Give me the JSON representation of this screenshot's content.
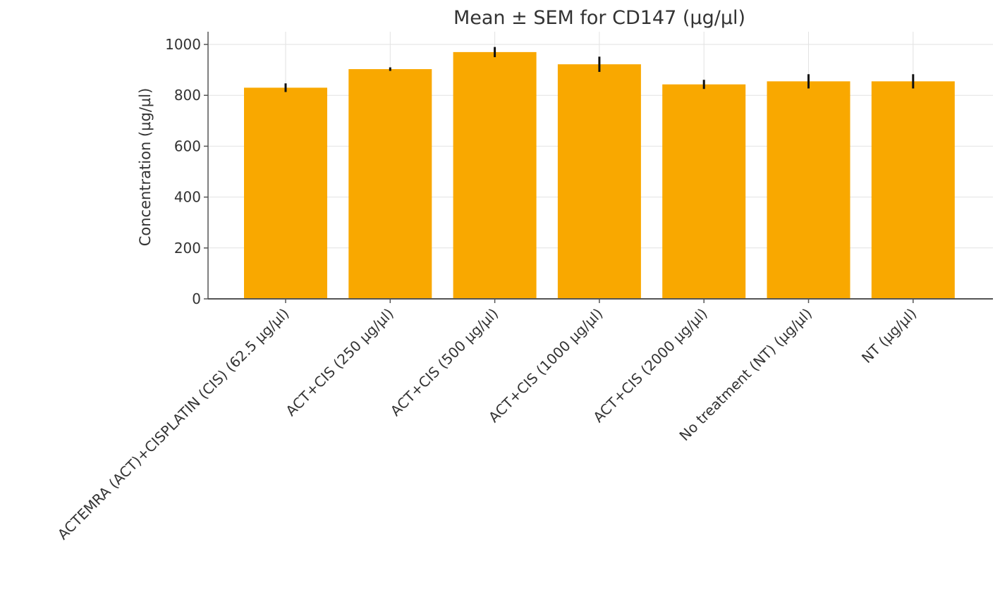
{
  "chart_data": {
    "type": "bar",
    "title": "Mean ± SEM for CD147 (µg/µl)",
    "xlabel": "",
    "ylabel": "Concentration (µg/µl)",
    "categories": [
      "ACTEMRA (ACT)+CISPLATIN (CIS) (62.5 µg/µl)",
      "ACT+CIS (250 µg/µl)",
      "ACT+CIS (500 µg/µl)",
      "ACT+CIS (1000 µg/µl)",
      "ACT+CIS (2000 µg/µl)",
      "No treatment (NT) (µg/µl)",
      "NT  (µg/µl)"
    ],
    "values": [
      830,
      903,
      970,
      922,
      843,
      855,
      855
    ],
    "errors": [
      17,
      7,
      20,
      30,
      18,
      28,
      28
    ],
    "ylim": [
      0,
      1050
    ],
    "yticks": [
      0,
      200,
      400,
      600,
      800,
      1000
    ],
    "grid": true,
    "colors": {
      "bar": "#f9a800",
      "error": "#111111",
      "axis": "#555555",
      "grid": "#e2e2e2"
    }
  }
}
